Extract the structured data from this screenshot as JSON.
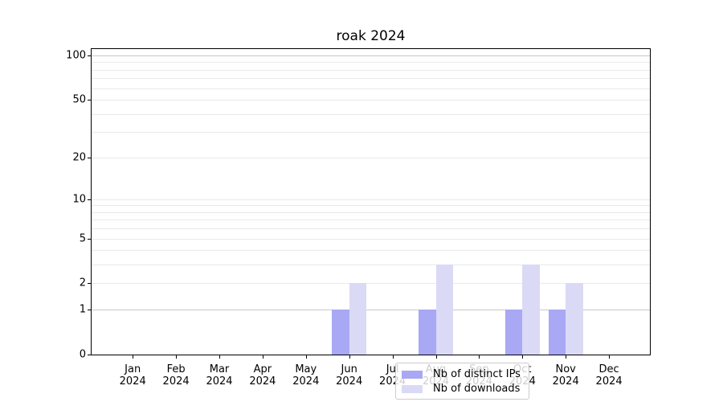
{
  "chart_data": {
    "type": "bar",
    "title": "roak 2024",
    "categories": [
      "Jan",
      "Feb",
      "Mar",
      "Apr",
      "May",
      "Jun",
      "Jul",
      "Aug",
      "Sep",
      "Oct",
      "Nov",
      "Dec"
    ],
    "x_tick_year": "2024",
    "series": [
      {
        "name": "Nb of distinct IPs",
        "color": "#a8a8f4",
        "values": [
          0,
          0,
          0,
          0,
          0,
          1,
          0,
          1,
          0,
          1,
          1,
          0
        ]
      },
      {
        "name": "Nb of downloads",
        "color": "#dadaf6",
        "values": [
          0,
          0,
          0,
          0,
          0,
          2,
          0,
          3,
          0,
          3,
          2,
          0
        ]
      }
    ],
    "xlabel": "",
    "ylabel": "",
    "yscale": "log10(1+y)",
    "ylim": [
      0,
      112
    ],
    "ytick_labels": [
      0,
      1,
      2,
      5,
      10,
      20,
      50,
      100
    ],
    "gridline_values": [
      1,
      2,
      3,
      4,
      5,
      6,
      7,
      8,
      9,
      10,
      20,
      30,
      40,
      50,
      60,
      70,
      80,
      90,
      100
    ],
    "emphasis_gridlines": [
      1,
      100
    ],
    "grid": true,
    "legend": {
      "position": "lower center"
    },
    "colors": {
      "bar_distinct_ips": "#a8a8f4",
      "bar_downloads": "#dadaf6",
      "grid": "#e9e9e9",
      "grid_emphasis": "#c8c8c8",
      "axis": "#000000",
      "legend_border": "#cccccc",
      "text": "#000000"
    }
  }
}
